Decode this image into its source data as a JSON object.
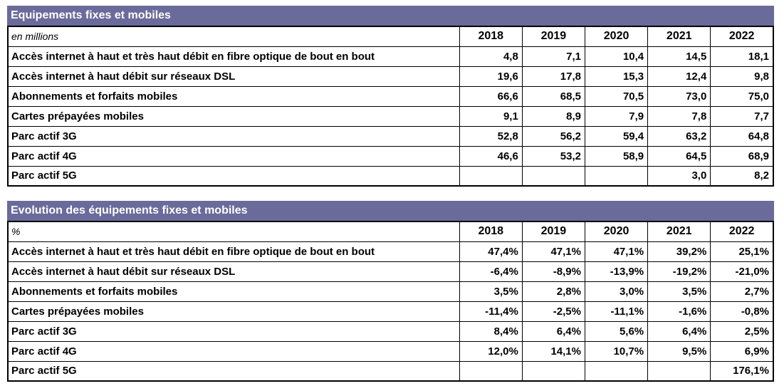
{
  "colors": {
    "header_bg": "#6a6a9b",
    "header_text": "#ffffff",
    "border": "#000000",
    "page_bg": "#ffffff"
  },
  "tables": [
    {
      "title": "Equipements fixes et mobiles",
      "unit_label": "en millions",
      "years": [
        "2018",
        "2019",
        "2020",
        "2021",
        "2022"
      ],
      "rows": [
        {
          "label": "Accès internet à haut et très haut débit en fibre optique de bout en bout",
          "values": [
            "4,8",
            "7,1",
            "10,4",
            "14,5",
            "18,1"
          ]
        },
        {
          "label": "Accès internet à haut débit sur réseaux DSL",
          "values": [
            "19,6",
            "17,8",
            "15,3",
            "12,4",
            "9,8"
          ]
        },
        {
          "label": "Abonnements et forfaits mobiles",
          "values": [
            "66,6",
            "68,5",
            "70,5",
            "73,0",
            "75,0"
          ]
        },
        {
          "label": "Cartes prépayées mobiles",
          "values": [
            "9,1",
            "8,9",
            "7,9",
            "7,8",
            "7,7"
          ]
        },
        {
          "label": "Parc actif 3G",
          "values": [
            "52,8",
            "56,2",
            "59,4",
            "63,2",
            "64,8"
          ]
        },
        {
          "label": "Parc actif 4G",
          "values": [
            "46,6",
            "53,2",
            "58,9",
            "64,5",
            "68,9"
          ]
        },
        {
          "label": "Parc actif 5G",
          "values": [
            "",
            "",
            "",
            "3,0",
            "8,2"
          ]
        }
      ]
    },
    {
      "title": "Evolution des équipements fixes et mobiles",
      "unit_label": "%",
      "years": [
        "2018",
        "2019",
        "2020",
        "2021",
        "2022"
      ],
      "rows": [
        {
          "label": "Accès internet à haut et très haut débit en fibre optique de bout en bout",
          "values": [
            "47,4%",
            "47,1%",
            "47,1%",
            "39,2%",
            "25,1%"
          ]
        },
        {
          "label": "Accès internet à haut débit sur réseaux DSL",
          "values": [
            "-6,4%",
            "-8,9%",
            "-13,9%",
            "-19,2%",
            "-21,0%"
          ]
        },
        {
          "label": "Abonnements et forfaits mobiles",
          "values": [
            "3,5%",
            "2,8%",
            "3,0%",
            "3,5%",
            "2,7%"
          ]
        },
        {
          "label": "Cartes prépayées mobiles",
          "values": [
            "-11,4%",
            "-2,5%",
            "-11,1%",
            "-1,6%",
            "-0,8%"
          ]
        },
        {
          "label": "Parc actif 3G",
          "values": [
            "8,4%",
            "6,4%",
            "5,6%",
            "6,4%",
            "2,5%"
          ]
        },
        {
          "label": "Parc actif 4G",
          "values": [
            "12,0%",
            "14,1%",
            "10,7%",
            "9,5%",
            "6,9%"
          ]
        },
        {
          "label": "Parc actif 5G",
          "values": [
            "",
            "",
            "",
            "",
            "176,1%"
          ]
        }
      ]
    }
  ]
}
